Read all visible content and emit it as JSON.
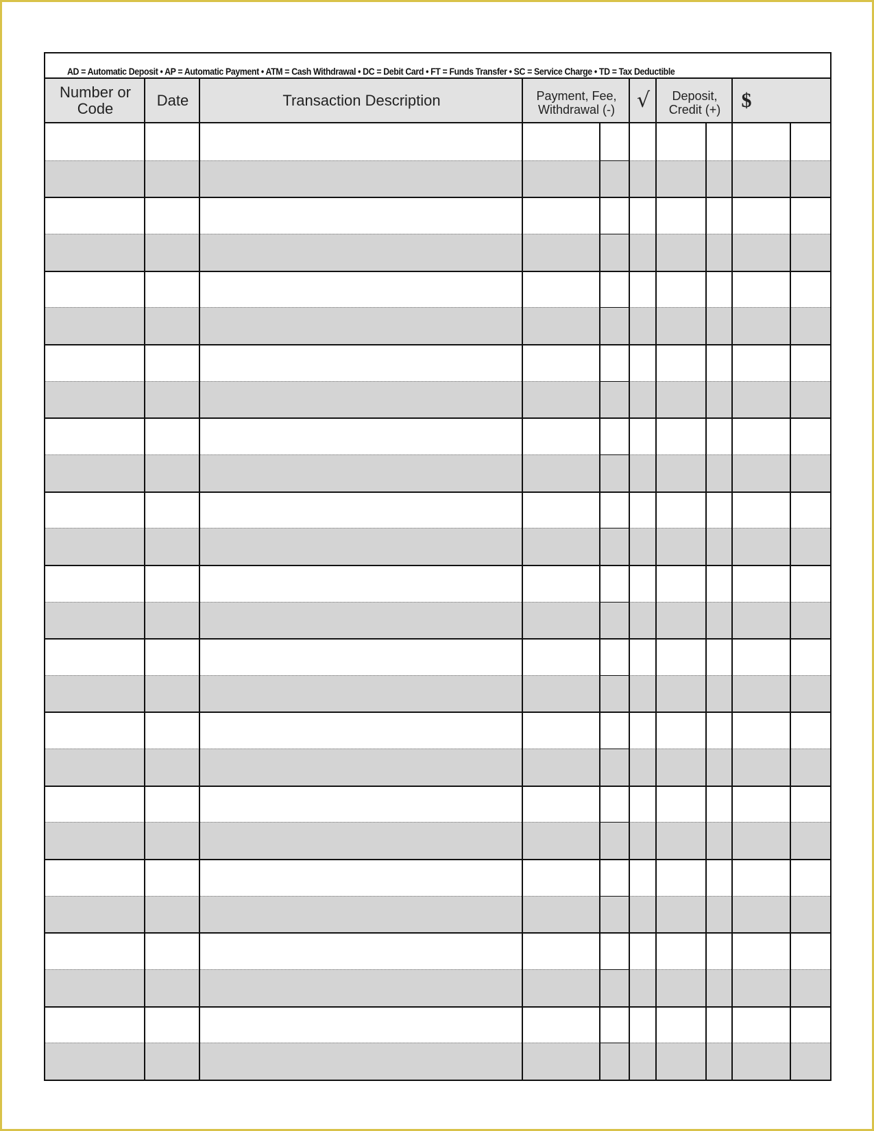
{
  "legend": "AD = Automatic Deposit •  AP = Automatic Payment •  ATM = Cash Withdrawal • DC = Debit Card • FT = Funds Transfer • SC = Service Charge • TD = Tax Deductible",
  "columns": {
    "number": "Number or Code",
    "date": "Date",
    "description": "Transaction Description",
    "payment": "Payment, Fee, Withdrawal (-)",
    "check": "√",
    "deposit": "Deposit, Credit (+)",
    "balance": "$"
  },
  "colors": {
    "header_bg": "#e2e2e2",
    "shade_row": "#d4d4d4",
    "page_border": "#d9c24a"
  }
}
